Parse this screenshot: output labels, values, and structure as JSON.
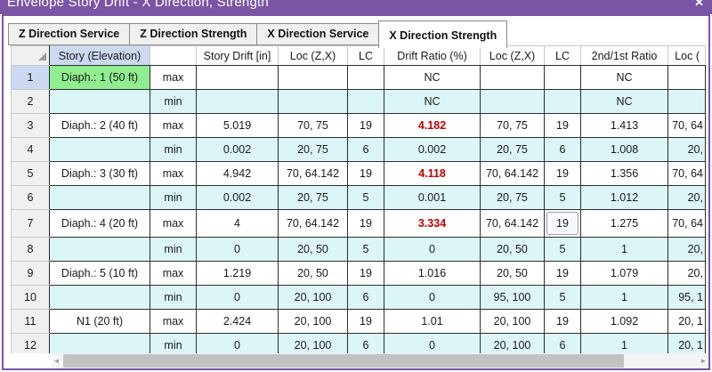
{
  "colors": {
    "purple": "#7a55a6",
    "green": "#90ee90",
    "cyan": "#dcf5f7",
    "red": "#c00000",
    "hlblue": "#cbd9f2"
  },
  "window": {
    "title": "Envelope Story Drift - X Direction, Strength",
    "close_label": "✕"
  },
  "tabs": [
    {
      "label": "Z Direction Service",
      "active": false
    },
    {
      "label": "Z Direction Strength",
      "active": false
    },
    {
      "label": "X Direction Service",
      "active": false
    },
    {
      "label": "X Direction Strength",
      "active": true
    }
  ],
  "table": {
    "headers": [
      "",
      "Story (Elevation)",
      "",
      "Story Drift [in]",
      "Loc (Z,X)",
      "LC",
      "Drift Ratio (%)",
      "Loc (Z,X)",
      "LC",
      "2nd/1st Ratio",
      "Loc ("
    ],
    "rows": [
      {
        "num": "1",
        "num_highlight": true,
        "story": "Diaph.: 1 (50 ft)",
        "story_highlight": true,
        "mm": "max",
        "kind": "max",
        "drift": "",
        "loc1": "",
        "lc1": "",
        "ratio": "NC",
        "ratio_red": false,
        "loc2": "",
        "lc2": "",
        "lc2_boxed": false,
        "ratio2": "NC",
        "loc3": ""
      },
      {
        "num": "2",
        "num_highlight": false,
        "story": "",
        "story_highlight": false,
        "mm": "min",
        "kind": "min",
        "drift": "",
        "loc1": "",
        "lc1": "",
        "ratio": "NC",
        "ratio_red": false,
        "loc2": "",
        "lc2": "",
        "lc2_boxed": false,
        "ratio2": "NC",
        "loc3": ""
      },
      {
        "num": "3",
        "num_highlight": false,
        "story": "Diaph.: 2 (40 ft)",
        "story_highlight": false,
        "mm": "max",
        "kind": "max",
        "drift": "5.019",
        "loc1": "70, 75",
        "lc1": "19",
        "ratio": "4.182",
        "ratio_red": true,
        "loc2": "70, 75",
        "lc2": "19",
        "lc2_boxed": false,
        "ratio2": "1.413",
        "loc3": "70, 64"
      },
      {
        "num": "4",
        "num_highlight": false,
        "story": "",
        "story_highlight": false,
        "mm": "min",
        "kind": "min",
        "drift": "0.002",
        "loc1": "20, 75",
        "lc1": "6",
        "ratio": "0.002",
        "ratio_red": false,
        "loc2": "20, 75",
        "lc2": "6",
        "lc2_boxed": false,
        "ratio2": "1.008",
        "loc3": "20,"
      },
      {
        "num": "5",
        "num_highlight": false,
        "story": "Diaph.: 3 (30 ft)",
        "story_highlight": false,
        "mm": "max",
        "kind": "max",
        "drift": "4.942",
        "loc1": "70, 64.142",
        "lc1": "19",
        "ratio": "4.118",
        "ratio_red": true,
        "loc2": "70, 64.142",
        "lc2": "19",
        "lc2_boxed": false,
        "ratio2": "1.356",
        "loc3": "70, 64"
      },
      {
        "num": "6",
        "num_highlight": false,
        "story": "",
        "story_highlight": false,
        "mm": "min",
        "kind": "min",
        "drift": "0.002",
        "loc1": "20, 75",
        "lc1": "5",
        "ratio": "0.001",
        "ratio_red": false,
        "loc2": "20, 75",
        "lc2": "5",
        "lc2_boxed": false,
        "ratio2": "1.012",
        "loc3": "20,"
      },
      {
        "num": "7",
        "num_highlight": false,
        "story": "Diaph.: 4 (20 ft)",
        "story_highlight": false,
        "mm": "max",
        "kind": "max",
        "drift": "4",
        "loc1": "70, 64.142",
        "lc1": "19",
        "ratio": "3.334",
        "ratio_red": true,
        "loc2": "70, 64.142",
        "lc2": "19",
        "lc2_boxed": true,
        "ratio2": "1.275",
        "loc3": "70, 64"
      },
      {
        "num": "8",
        "num_highlight": false,
        "story": "",
        "story_highlight": false,
        "mm": "min",
        "kind": "min",
        "drift": "0",
        "loc1": "20, 50",
        "lc1": "5",
        "ratio": "0",
        "ratio_red": false,
        "loc2": "20, 50",
        "lc2": "5",
        "lc2_boxed": false,
        "ratio2": "1",
        "loc3": "20,"
      },
      {
        "num": "9",
        "num_highlight": false,
        "story": "Diaph.: 5 (10 ft)",
        "story_highlight": false,
        "mm": "max",
        "kind": "max",
        "drift": "1.219",
        "loc1": "20, 50",
        "lc1": "19",
        "ratio": "1.016",
        "ratio_red": false,
        "loc2": "20, 50",
        "lc2": "19",
        "lc2_boxed": false,
        "ratio2": "1.079",
        "loc3": "20,"
      },
      {
        "num": "10",
        "num_highlight": false,
        "story": "",
        "story_highlight": false,
        "mm": "min",
        "kind": "min",
        "drift": "0",
        "loc1": "20, 100",
        "lc1": "6",
        "ratio": "0",
        "ratio_red": false,
        "loc2": "95, 100",
        "lc2": "5",
        "lc2_boxed": false,
        "ratio2": "1",
        "loc3": "95, 1"
      },
      {
        "num": "11",
        "num_highlight": false,
        "story": "N1 (20 ft)",
        "story_highlight": false,
        "mm": "max",
        "kind": "max",
        "drift": "2.424",
        "loc1": "20, 100",
        "lc1": "19",
        "ratio": "1.01",
        "ratio_red": false,
        "loc2": "20, 100",
        "lc2": "19",
        "lc2_boxed": false,
        "ratio2": "1.092",
        "loc3": "20, 1"
      },
      {
        "num": "12",
        "num_highlight": false,
        "story": "",
        "story_highlight": false,
        "mm": "min",
        "kind": "min",
        "drift": "0",
        "loc1": "20, 100",
        "lc1": "6",
        "ratio": "0",
        "ratio_red": false,
        "loc2": "20, 100",
        "lc2": "6",
        "lc2_boxed": false,
        "ratio2": "1",
        "loc3": "20, 1"
      }
    ]
  },
  "scrollbar": {
    "left_arrow": "◄",
    "right_arrow": "►"
  }
}
